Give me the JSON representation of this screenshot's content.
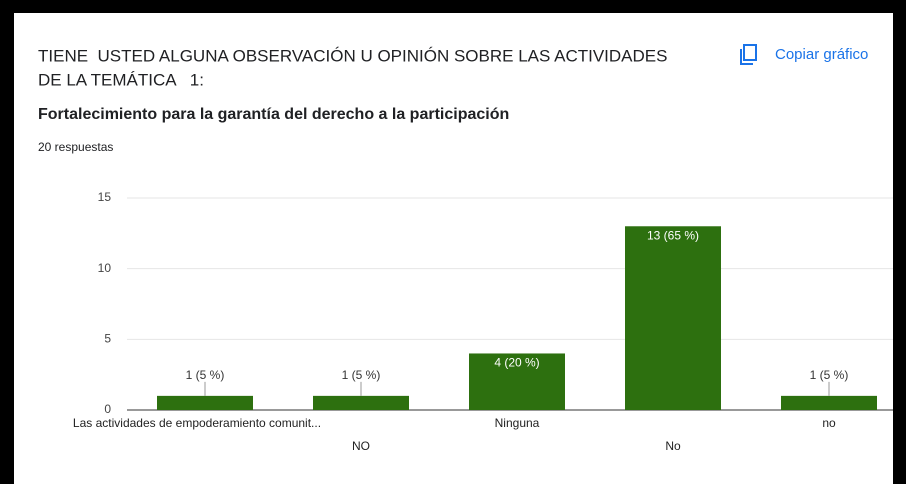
{
  "header": {
    "title": [
      "TIENE  USTED ALGUNA OBSERVACIÓN U OPINIÓN SOBRE LAS ACTIVIDADES",
      "DE LA TEMÁTICA   1:"
    ],
    "subtitle": "Fortalecimiento para la garantía del derecho a la participación",
    "responses": "20 respuestas",
    "copy_button": "Copiar gráfico"
  },
  "chart_data": {
    "type": "bar",
    "categories": [
      "Las actividades de empoderamiento comunit...",
      "NO",
      "Ninguna",
      "No",
      "no"
    ],
    "values": [
      1,
      1,
      4,
      13,
      1
    ],
    "value_labels": [
      "1 (5 %)",
      "1 (5 %)",
      "4 (20 %)",
      "13 (65 %)",
      "1 (5 %)"
    ],
    "color": "#2d700f",
    "ylim": [
      0,
      15
    ],
    "yticks": [
      0,
      5,
      10,
      15
    ],
    "grid": true
  }
}
